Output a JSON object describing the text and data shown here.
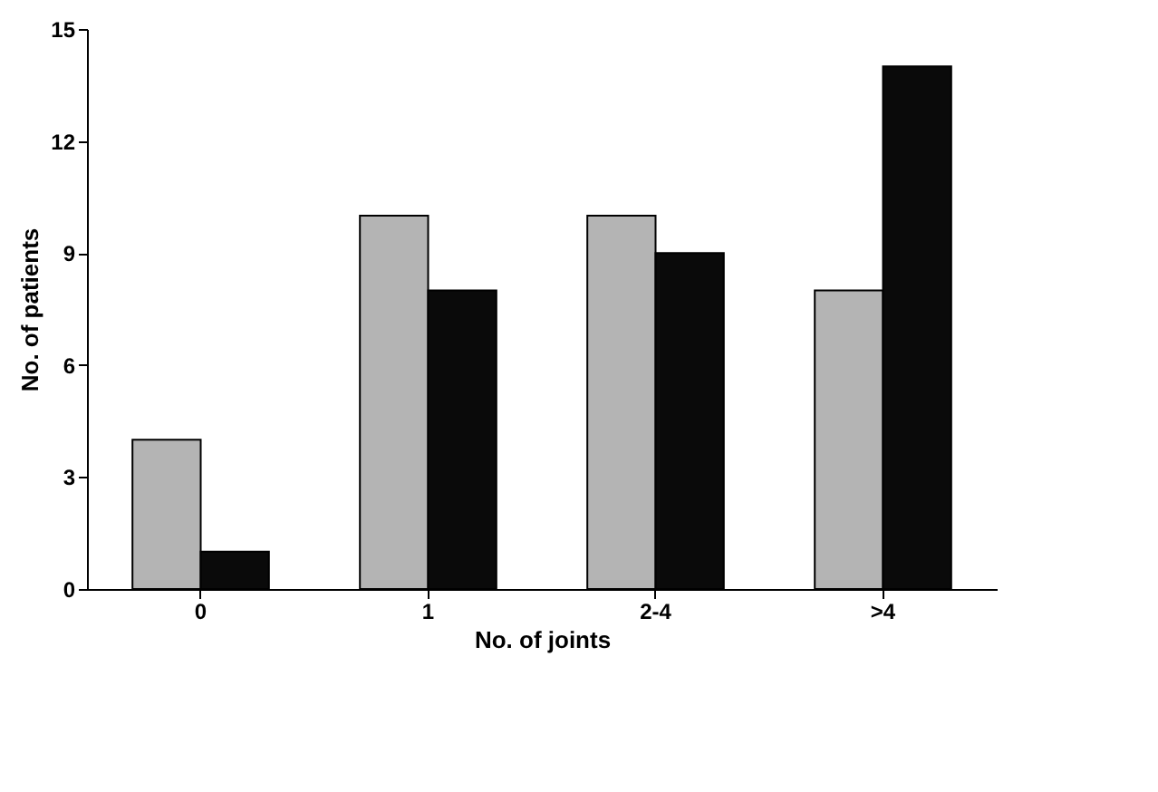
{
  "chart_data": {
    "type": "bar",
    "xlabel": "No. of joints",
    "ylabel": "No. of patients",
    "categories": [
      "0",
      "1",
      "2-4",
      ">4"
    ],
    "series": [
      {
        "color": "#b4b4b4",
        "values": [
          4,
          10,
          10,
          8
        ]
      },
      {
        "color": "#0a0a0a",
        "values": [
          1,
          8,
          9,
          14
        ]
      }
    ],
    "ylim": [
      0,
      15
    ],
    "yticks": [
      0,
      3,
      6,
      9,
      12,
      15
    ],
    "grid": false,
    "legend": false
  }
}
